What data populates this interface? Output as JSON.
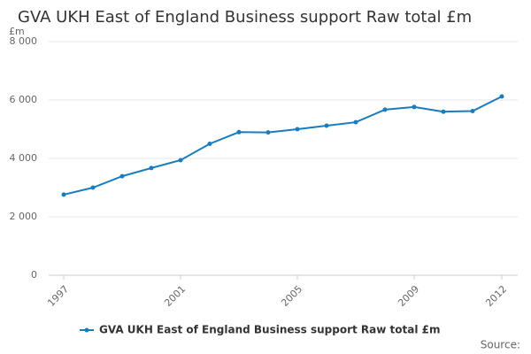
{
  "chart_data": {
    "type": "line",
    "title": "GVA UKH East of England Business support Raw total £m",
    "y_unit": "£m",
    "source": "Source:",
    "x": [
      1997,
      1998,
      1999,
      2000,
      2001,
      2002,
      2003,
      2004,
      2005,
      2006,
      2007,
      2008,
      2009,
      2010,
      2011,
      2012
    ],
    "xlim": [
      1997,
      2012
    ],
    "xticks": [
      1997,
      2001,
      2005,
      2009,
      2012
    ],
    "series": [
      {
        "name": "GVA UKH East of England Business support Raw total £m",
        "color": "#1a7cbd",
        "values": [
          2760,
          3000,
          3390,
          3670,
          3940,
          4500,
          4900,
          4890,
          5000,
          5120,
          5240,
          5670,
          5760,
          5600,
          5620,
          6120
        ]
      }
    ],
    "ylim": [
      0,
      8000
    ],
    "yticks": [
      0,
      {
        "value": 2000,
        "label": "2 000"
      },
      {
        "value": 4000,
        "label": "4 000"
      },
      {
        "value": 6000,
        "label": "6 000"
      },
      {
        "value": 8000,
        "label": "8 000"
      }
    ],
    "grid": true
  }
}
